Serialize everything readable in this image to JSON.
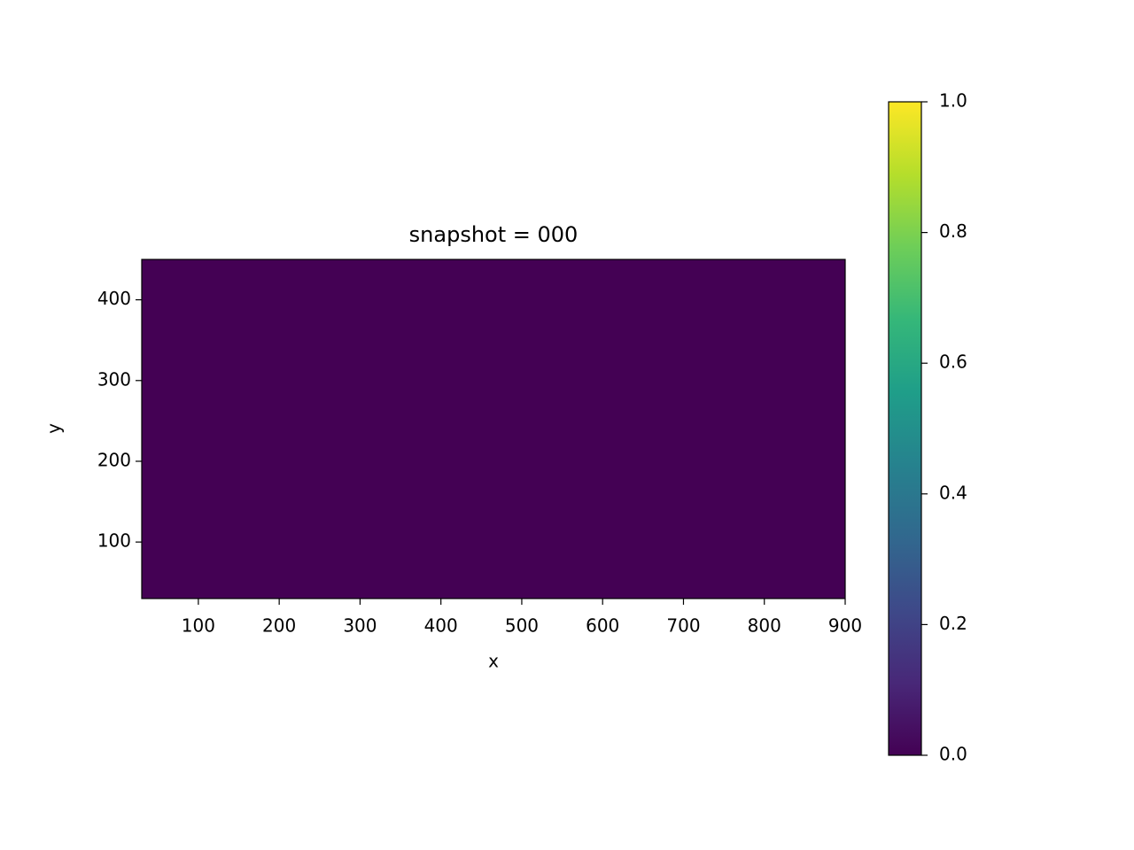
{
  "chart_data": {
    "type": "heatmap",
    "title": "snapshot = 000",
    "xlabel": "x",
    "ylabel": "y",
    "z": [
      [
        0
      ]
    ],
    "colormap": "viridis",
    "xlim": [
      30,
      900
    ],
    "xticks": [
      100,
      200,
      300,
      400,
      500,
      600,
      700,
      800,
      900
    ],
    "ylim": [
      30,
      450
    ],
    "yticks": [
      100,
      200,
      300,
      400
    ],
    "clim": [
      0,
      1
    ],
    "cticks": [
      {
        "value": 0,
        "label": "0.0"
      },
      0.2,
      0.4,
      0.6,
      0.8,
      {
        "value": 1,
        "label": "1.0"
      }
    ]
  }
}
